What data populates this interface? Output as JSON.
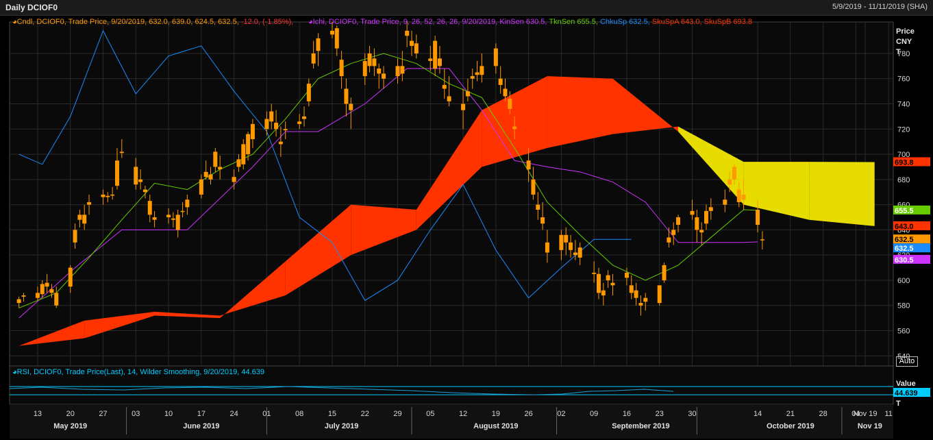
{
  "header": {
    "title": "Daily DCIOF0",
    "date_range": "5/9/2019 - 11/11/2019 (SHA)"
  },
  "legend": {
    "candle": {
      "text": "Cndl, DCIOF0, Trade Price, 9/20/2019, 632.0, 639.0, 624.5, 632.5,",
      "change": "-12.0, (-1.85%),"
    },
    "ichimoku": {
      "prefix": "Ichi, DCIOF0, Trade Price,  9, 26, 52, 26, 26, 9/20/2019,",
      "kinsen": "KinSen 630.5,",
      "tknsen": "TknSen 655.5,",
      "chkusp": "ChkuSp 632.5,",
      "skuspa": "SkuSpA 643.0,",
      "skuspb": "SkuSpB 693.8"
    },
    "rsi": "RSI, DCIOF0, Trade Price(Last),  14, Wilder Smoothing, 9/20/2019, 44.639"
  },
  "price_axis": {
    "title_line1": "Price",
    "title_line2": "CNY",
    "title_line3": "T",
    "ticks": [
      "540",
      "560",
      "580",
      "600",
      "620",
      "640",
      "660",
      "680",
      "700",
      "720",
      "740",
      "760",
      "780"
    ],
    "auto_label": "Auto",
    "tags": [
      {
        "label": "693.8",
        "value": 693.8,
        "color": "#ff3300",
        "text_color": "#000000"
      },
      {
        "label": "655.5",
        "value": 655.5,
        "color": "#66cc00",
        "text_color": "#ffffff"
      },
      {
        "label": "643.0",
        "value": 643.0,
        "color": "#ff3300",
        "text_color": "#000000"
      },
      {
        "label": "632.5",
        "value": 632.5,
        "color": "#ff9900",
        "text_color": "#000000"
      },
      {
        "label": "632.5",
        "value": 632.5,
        "color": "#1a8cff",
        "text_color": "#ffffff"
      },
      {
        "label": "630.5",
        "value": 630.5,
        "color": "#cc33ff",
        "text_color": "#ffffff"
      }
    ]
  },
  "rsi_axis": {
    "title": "Value",
    "unit": "T",
    "tag": "44.639",
    "tag_color": "#00ccff"
  },
  "x_axis": {
    "day_labels": [
      "13",
      "20",
      "27",
      "03",
      "10",
      "17",
      "24",
      "01",
      "08",
      "15",
      "22",
      "29",
      "05",
      "12",
      "19",
      "26",
      "02",
      "09",
      "16",
      "23",
      "30",
      "14",
      "21",
      "28",
      "04",
      "Nov 19",
      "11"
    ],
    "month_labels": [
      "May 2019",
      "June 2019",
      "July 2019",
      "August 2019",
      "September 2019",
      "October 2019",
      "Nov 19"
    ]
  },
  "colors": {
    "background": "#000000",
    "plot_bg": "#0a0a0a",
    "grid": "#2a2a2a",
    "candle": "#ff9900",
    "kinsen": "#cc33ff",
    "tenkan": "#66cc00",
    "chikou": "#1a8cff",
    "kumo_bull": "#ff3300",
    "kumo_bear": "#e6dc00",
    "rsi": "#00ccff"
  },
  "chart_data": {
    "type": "candlestick",
    "title": "Daily DCIOF0",
    "ylabel": "Price CNY",
    "ylim": [
      532,
      805
    ],
    "grid": true,
    "candles": [
      {
        "d": "2019-05-09",
        "o": 582,
        "h": 587,
        "l": 578,
        "c": 585
      },
      {
        "d": "2019-05-10",
        "o": 587,
        "h": 590,
        "l": 583,
        "c": 588
      },
      {
        "d": "2019-05-13",
        "o": 590,
        "h": 595,
        "l": 584,
        "c": 586
      },
      {
        "d": "2019-05-14",
        "o": 589,
        "h": 600,
        "l": 586,
        "c": 597
      },
      {
        "d": "2019-05-15",
        "o": 595,
        "h": 605,
        "l": 590,
        "c": 598
      },
      {
        "d": "2019-05-16",
        "o": 590,
        "h": 597,
        "l": 586,
        "c": 593
      },
      {
        "d": "2019-05-17",
        "o": 580,
        "h": 595,
        "l": 578,
        "c": 590
      },
      {
        "d": "2019-05-20",
        "o": 595,
        "h": 612,
        "l": 590,
        "c": 610
      },
      {
        "d": "2019-05-21",
        "o": 630,
        "h": 645,
        "l": 625,
        "c": 640
      },
      {
        "d": "2019-05-22",
        "o": 648,
        "h": 656,
        "l": 642,
        "c": 652
      },
      {
        "d": "2019-05-23",
        "o": 652,
        "h": 660,
        "l": 640,
        "c": 645
      },
      {
        "d": "2019-05-24",
        "o": 660,
        "h": 668,
        "l": 652,
        "c": 662
      },
      {
        "d": "2019-05-27",
        "o": 666,
        "h": 672,
        "l": 660,
        "c": 668
      },
      {
        "d": "2019-05-28",
        "o": 666,
        "h": 670,
        "l": 662,
        "c": 667
      },
      {
        "d": "2019-05-29",
        "o": 668,
        "h": 674,
        "l": 664,
        "c": 668
      },
      {
        "d": "2019-05-30",
        "o": 675,
        "h": 705,
        "l": 672,
        "c": 695
      },
      {
        "d": "2019-05-31",
        "o": 701,
        "h": 712,
        "l": 697,
        "c": 702
      },
      {
        "d": "2019-06-03",
        "o": 690,
        "h": 697,
        "l": 672,
        "c": 676
      },
      {
        "d": "2019-06-04",
        "o": 680,
        "h": 688,
        "l": 672,
        "c": 678
      },
      {
        "d": "2019-06-05",
        "o": 670,
        "h": 675,
        "l": 665,
        "c": 672
      },
      {
        "d": "2019-06-06",
        "o": 663,
        "h": 668,
        "l": 646,
        "c": 652
      },
      {
        "d": "2019-06-07",
        "o": 650,
        "h": 655,
        "l": 642,
        "c": 648
      },
      {
        "d": "2019-06-10",
        "o": 650,
        "h": 657,
        "l": 645,
        "c": 652
      },
      {
        "d": "2019-06-11",
        "o": 649,
        "h": 654,
        "l": 642,
        "c": 648
      },
      {
        "d": "2019-06-12",
        "o": 652,
        "h": 656,
        "l": 634,
        "c": 640
      },
      {
        "d": "2019-06-13",
        "o": 655,
        "h": 662,
        "l": 650,
        "c": 655
      },
      {
        "d": "2019-06-14",
        "o": 658,
        "h": 668,
        "l": 652,
        "c": 664
      },
      {
        "d": "2019-06-17",
        "o": 668,
        "h": 684,
        "l": 665,
        "c": 680
      },
      {
        "d": "2019-06-18",
        "o": 686,
        "h": 695,
        "l": 680,
        "c": 682
      },
      {
        "d": "2019-06-19",
        "o": 684,
        "h": 690,
        "l": 676,
        "c": 680
      },
      {
        "d": "2019-06-20",
        "o": 690,
        "h": 705,
        "l": 686,
        "c": 702
      },
      {
        "d": "2019-06-21",
        "o": 690,
        "h": 699,
        "l": 680,
        "c": 688
      },
      {
        "d": "2019-06-24",
        "o": 682,
        "h": 688,
        "l": 672,
        "c": 678
      },
      {
        "d": "2019-06-25",
        "o": 690,
        "h": 700,
        "l": 686,
        "c": 696
      },
      {
        "d": "2019-06-26",
        "o": 692,
        "h": 712,
        "l": 688,
        "c": 708
      },
      {
        "d": "2019-06-27",
        "o": 700,
        "h": 718,
        "l": 695,
        "c": 716
      },
      {
        "d": "2019-06-28",
        "o": 712,
        "h": 728,
        "l": 705,
        "c": 724
      },
      {
        "d": "2019-07-01",
        "o": 720,
        "h": 734,
        "l": 715,
        "c": 728
      },
      {
        "d": "2019-07-02",
        "o": 726,
        "h": 740,
        "l": 720,
        "c": 734
      },
      {
        "d": "2019-07-03",
        "o": 725,
        "h": 735,
        "l": 714,
        "c": 720
      },
      {
        "d": "2019-07-04",
        "o": 708,
        "h": 722,
        "l": 698,
        "c": 710
      },
      {
        "d": "2019-07-05",
        "o": 720,
        "h": 726,
        "l": 712,
        "c": 719
      },
      {
        "d": "2019-07-08",
        "o": 726,
        "h": 732,
        "l": 720,
        "c": 724
      },
      {
        "d": "2019-07-09",
        "o": 728,
        "h": 738,
        "l": 722,
        "c": 730
      },
      {
        "d": "2019-07-10",
        "o": 742,
        "h": 760,
        "l": 738,
        "c": 756
      },
      {
        "d": "2019-07-11",
        "o": 772,
        "h": 790,
        "l": 768,
        "c": 780
      },
      {
        "d": "2019-07-12",
        "o": 782,
        "h": 796,
        "l": 770,
        "c": 792
      },
      {
        "d": "2019-07-15",
        "o": 798,
        "h": 805,
        "l": 792,
        "c": 795
      },
      {
        "d": "2019-07-16",
        "o": 800,
        "h": 802,
        "l": 778,
        "c": 784
      },
      {
        "d": "2019-07-17",
        "o": 775,
        "h": 782,
        "l": 752,
        "c": 762
      },
      {
        "d": "2019-07-18",
        "o": 752,
        "h": 760,
        "l": 730,
        "c": 740
      },
      {
        "d": "2019-07-19",
        "o": 735,
        "h": 745,
        "l": 720,
        "c": 740
      },
      {
        "d": "2019-07-22",
        "o": 762,
        "h": 780,
        "l": 755,
        "c": 774
      },
      {
        "d": "2019-07-23",
        "o": 770,
        "h": 786,
        "l": 765,
        "c": 780
      },
      {
        "d": "2019-07-24",
        "o": 776,
        "h": 784,
        "l": 762,
        "c": 770
      },
      {
        "d": "2019-07-25",
        "o": 764,
        "h": 772,
        "l": 752,
        "c": 768
      },
      {
        "d": "2019-07-26",
        "o": 764,
        "h": 770,
        "l": 752,
        "c": 760
      },
      {
        "d": "2019-07-29",
        "o": 762,
        "h": 776,
        "l": 756,
        "c": 770
      },
      {
        "d": "2019-07-30",
        "o": 770,
        "h": 782,
        "l": 758,
        "c": 764
      },
      {
        "d": "2019-07-31",
        "o": 794,
        "h": 806,
        "l": 785,
        "c": 798
      },
      {
        "d": "2019-08-01",
        "o": 790,
        "h": 798,
        "l": 778,
        "c": 786
      },
      {
        "d": "2019-08-02",
        "o": 788,
        "h": 795,
        "l": 776,
        "c": 780
      },
      {
        "d": "2019-08-05",
        "o": 776,
        "h": 786,
        "l": 766,
        "c": 774
      },
      {
        "d": "2019-08-06",
        "o": 790,
        "h": 794,
        "l": 762,
        "c": 768
      },
      {
        "d": "2019-08-07",
        "o": 776,
        "h": 786,
        "l": 764,
        "c": 770
      },
      {
        "d": "2019-08-08",
        "o": 755,
        "h": 768,
        "l": 744,
        "c": 752
      },
      {
        "d": "2019-08-09",
        "o": 746,
        "h": 762,
        "l": 738,
        "c": 742
      },
      {
        "d": "2019-08-12",
        "o": 740,
        "h": 752,
        "l": 720,
        "c": 735
      },
      {
        "d": "2019-08-13",
        "o": 750,
        "h": 760,
        "l": 742,
        "c": 746
      },
      {
        "d": "2019-08-14",
        "o": 760,
        "h": 768,
        "l": 752,
        "c": 762
      },
      {
        "d": "2019-08-15",
        "o": 765,
        "h": 774,
        "l": 758,
        "c": 763
      },
      {
        "d": "2019-08-16",
        "o": 763,
        "h": 780,
        "l": 757,
        "c": 770
      },
      {
        "d": "2019-08-19",
        "o": 770,
        "h": 788,
        "l": 764,
        "c": 784
      },
      {
        "d": "2019-08-20",
        "o": 760,
        "h": 770,
        "l": 748,
        "c": 755
      },
      {
        "d": "2019-08-21",
        "o": 752,
        "h": 760,
        "l": 742,
        "c": 746
      },
      {
        "d": "2019-08-22",
        "o": 744,
        "h": 750,
        "l": 732,
        "c": 736
      },
      {
        "d": "2019-08-23",
        "o": 720,
        "h": 730,
        "l": 712,
        "c": 722
      },
      {
        "d": "2019-08-26",
        "o": 695,
        "h": 705,
        "l": 678,
        "c": 688
      },
      {
        "d": "2019-08-27",
        "o": 680,
        "h": 690,
        "l": 664,
        "c": 668
      },
      {
        "d": "2019-08-28",
        "o": 660,
        "h": 670,
        "l": 648,
        "c": 656
      },
      {
        "d": "2019-08-29",
        "o": 650,
        "h": 662,
        "l": 640,
        "c": 645
      },
      {
        "d": "2019-08-30",
        "o": 630,
        "h": 640,
        "l": 614,
        "c": 622
      },
      {
        "d": "2019-09-02",
        "o": 624,
        "h": 640,
        "l": 616,
        "c": 636
      },
      {
        "d": "2019-09-03",
        "o": 636,
        "h": 642,
        "l": 620,
        "c": 630
      },
      {
        "d": "2019-09-04",
        "o": 630,
        "h": 636,
        "l": 618,
        "c": 624
      },
      {
        "d": "2019-09-05",
        "o": 622,
        "h": 632,
        "l": 616,
        "c": 620
      },
      {
        "d": "2019-09-06",
        "o": 626,
        "h": 630,
        "l": 612,
        "c": 618
      },
      {
        "d": "2019-09-09",
        "o": 605,
        "h": 615,
        "l": 598,
        "c": 606
      },
      {
        "d": "2019-09-10",
        "o": 605,
        "h": 610,
        "l": 585,
        "c": 590
      },
      {
        "d": "2019-09-11",
        "o": 592,
        "h": 598,
        "l": 580,
        "c": 588
      },
      {
        "d": "2019-09-12",
        "o": 600,
        "h": 608,
        "l": 594,
        "c": 604
      },
      {
        "d": "2019-09-13",
        "o": 598,
        "h": 605,
        "l": 588,
        "c": 596
      },
      {
        "d": "2019-09-16",
        "o": 602,
        "h": 610,
        "l": 596,
        "c": 606
      },
      {
        "d": "2019-09-17",
        "o": 596,
        "h": 604,
        "l": 585,
        "c": 590
      },
      {
        "d": "2019-09-18",
        "o": 592,
        "h": 598,
        "l": 580,
        "c": 586
      },
      {
        "d": "2019-09-19",
        "o": 580,
        "h": 588,
        "l": 572,
        "c": 582
      },
      {
        "d": "2019-09-20",
        "o": 583,
        "h": 590,
        "l": 576,
        "c": 586
      },
      {
        "d": "2019-09-23",
        "o": 582,
        "h": 596,
        "l": 580,
        "c": 596
      },
      {
        "d": "2019-09-24",
        "o": 600,
        "h": 614,
        "l": 598,
        "c": 612
      },
      {
        "d": "2019-09-25",
        "o": 630,
        "h": 642,
        "l": 626,
        "c": 634
      },
      {
        "d": "2019-09-26",
        "o": 640,
        "h": 646,
        "l": 628,
        "c": 636
      },
      {
        "d": "2019-09-27",
        "o": 644,
        "h": 652,
        "l": 638,
        "c": 650
      },
      {
        "d": "2019-09-30",
        "o": 655,
        "h": 664,
        "l": 648,
        "c": 652
      },
      {
        "d": "2019-10-01",
        "o": 650,
        "h": 656,
        "l": 630,
        "c": 640
      },
      {
        "d": "2019-10-02",
        "o": 638,
        "h": 646,
        "l": 628,
        "c": 640
      },
      {
        "d": "2019-10-03",
        "o": 645,
        "h": 660,
        "l": 640,
        "c": 655
      },
      {
        "d": "2019-10-04",
        "o": 655,
        "h": 665,
        "l": 648,
        "c": 658
      },
      {
        "d": "2019-10-07",
        "o": 660,
        "h": 672,
        "l": 654,
        "c": 664
      },
      {
        "d": "2019-10-08",
        "o": 676,
        "h": 686,
        "l": 670,
        "c": 680
      },
      {
        "d": "2019-10-09",
        "o": 690,
        "h": 692,
        "l": 676,
        "c": 680
      },
      {
        "d": "2019-10-10",
        "o": 672,
        "h": 678,
        "l": 658,
        "c": 662
      },
      {
        "d": "2019-10-11",
        "o": 668,
        "h": 680,
        "l": 656,
        "c": 664
      },
      {
        "d": "2019-10-14",
        "o": 656,
        "h": 664,
        "l": 638,
        "c": 644
      },
      {
        "d": "2019-09-20b",
        "o": 632,
        "h": 639,
        "l": 624.5,
        "c": 632.5
      }
    ],
    "tenkan_sen": {
      "name": "TknSen",
      "x": [
        "2019-05-09",
        "2019-05-17",
        "2019-05-24",
        "2019-05-31",
        "2019-06-07",
        "2019-06-14",
        "2019-06-21",
        "2019-06-28",
        "2019-07-05",
        "2019-07-12",
        "2019-07-19",
        "2019-07-26",
        "2019-08-02",
        "2019-08-09",
        "2019-08-16",
        "2019-08-23",
        "2019-08-30",
        "2019-09-06",
        "2019-09-13",
        "2019-09-20",
        "2019-09-27",
        "2019-10-04",
        "2019-10-11",
        "2019-10-14"
      ],
      "y": [
        578,
        590,
        618,
        648,
        677,
        672,
        688,
        700,
        728,
        760,
        772,
        780,
        772,
        756,
        745,
        705,
        662,
        636,
        612,
        600,
        612,
        634,
        656,
        655.5
      ]
    },
    "kijun_sen": {
      "name": "KinSen",
      "x": [
        "2019-05-09",
        "2019-05-21",
        "2019-05-31",
        "2019-06-14",
        "2019-06-28",
        "2019-07-05",
        "2019-07-12",
        "2019-07-22",
        "2019-07-31",
        "2019-08-09",
        "2019-08-16",
        "2019-08-23",
        "2019-08-30",
        "2019-09-06",
        "2019-09-13",
        "2019-09-20",
        "2019-09-27",
        "2019-10-04",
        "2019-10-11",
        "2019-10-14"
      ],
      "y": [
        570,
        610,
        640,
        640,
        690,
        718,
        718,
        740,
        768,
        768,
        735,
        695,
        690,
        686,
        678,
        662,
        630,
        630,
        630,
        630.5
      ]
    },
    "chikou_span": {
      "name": "ChkuSp",
      "x": [
        "2019-05-09",
        "2019-05-14",
        "2019-05-20",
        "2019-05-27",
        "2019-06-03",
        "2019-06-10",
        "2019-06-17",
        "2019-06-24",
        "2019-07-01",
        "2019-07-08",
        "2019-07-15",
        "2019-07-22",
        "2019-07-29",
        "2019-08-05",
        "2019-08-12",
        "2019-08-19",
        "2019-08-26",
        "2019-09-02",
        "2019-09-09",
        "2019-09-17"
      ],
      "y": [
        700,
        692,
        730,
        798,
        748,
        778,
        786,
        750,
        718,
        650,
        630,
        584,
        600,
        640,
        676,
        624,
        586,
        610,
        632.5,
        632.5
      ]
    },
    "senkou_span_a": {
      "name": "SkuSpA",
      "x": [
        "2019-05-09",
        "2019-05-23",
        "2019-06-07",
        "2019-06-21",
        "2019-07-05",
        "2019-07-19",
        "2019-08-02",
        "2019-08-16",
        "2019-08-30",
        "2019-09-13",
        "2019-09-27",
        "2019-10-11",
        "2019-10-25",
        "2019-11-08"
      ],
      "y": [
        548,
        554,
        572,
        570,
        615,
        660,
        656,
        735,
        762,
        760,
        718,
        660,
        648,
        643.0
      ]
    },
    "senkou_span_b": {
      "name": "SkuSpB",
      "x": [
        "2019-05-09",
        "2019-05-23",
        "2019-06-07",
        "2019-06-21",
        "2019-07-05",
        "2019-07-19",
        "2019-08-02",
        "2019-08-16",
        "2019-08-30",
        "2019-09-13",
        "2019-09-27",
        "2019-10-11",
        "2019-10-25",
        "2019-11-08"
      ],
      "y": [
        548,
        568,
        575,
        572,
        588,
        620,
        640,
        690,
        705,
        716,
        722,
        694,
        694,
        693.8
      ]
    },
    "rsi": {
      "name": "RSI",
      "period": 14,
      "last": 44.639
    }
  }
}
